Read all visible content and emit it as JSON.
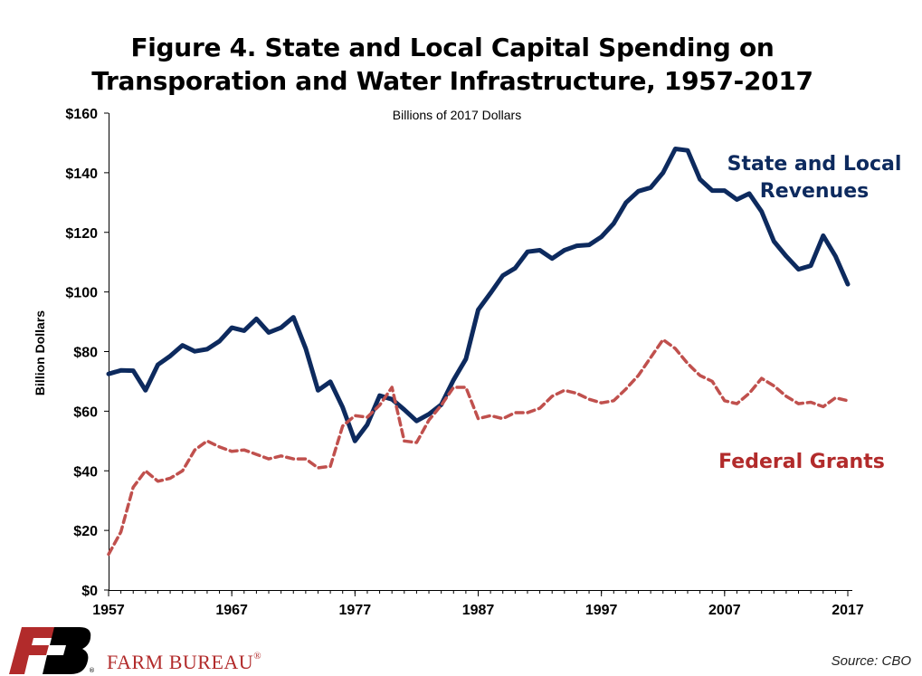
{
  "chart_data": {
    "type": "line",
    "title_lines": [
      "Figure 4. State and Local Capital Spending on",
      "Transporation and Water Infrastructure, 1957-2017"
    ],
    "subtitle": "Billions of 2017 Dollars",
    "ylabel": "Billion Dollars",
    "xlabel": "",
    "xlim": [
      1957,
      2017
    ],
    "ylim": [
      0,
      160
    ],
    "x_ticks": [
      1957,
      1967,
      1977,
      1987,
      1997,
      2007,
      2017
    ],
    "y_ticks": [
      {
        "v": 0,
        "label": "$0"
      },
      {
        "v": 20,
        "label": "$20"
      },
      {
        "v": 40,
        "label": "$40"
      },
      {
        "v": 60,
        "label": "$60"
      },
      {
        "v": 80,
        "label": "$80"
      },
      {
        "v": 100,
        "label": "$100"
      },
      {
        "v": 120,
        "label": "$120"
      },
      {
        "v": 140,
        "label": "$140"
      },
      {
        "v": 160,
        "label": "$160"
      }
    ],
    "grid": false,
    "legend": "inline labels",
    "series": [
      {
        "name": "State and Local Revenues",
        "label_lines": [
          "State and Local",
          "Revenues"
        ],
        "color": "#0d2a5e",
        "style": "solid",
        "x": [
          1957,
          1958,
          1959,
          1960,
          1961,
          1962,
          1963,
          1964,
          1965,
          1966,
          1967,
          1968,
          1969,
          1970,
          1971,
          1972,
          1973,
          1974,
          1975,
          1976,
          1977,
          1978,
          1979,
          1980,
          1981,
          1982,
          1983,
          1984,
          1985,
          1986,
          1987,
          1988,
          1989,
          1990,
          1991,
          1992,
          1993,
          1994,
          1995,
          1996,
          1997,
          1998,
          1999,
          2000,
          2001,
          2002,
          2003,
          2004,
          2005,
          2006,
          2007,
          2008,
          2009,
          2010,
          2011,
          2012,
          2013,
          2014,
          2015,
          2016,
          2017
        ],
        "values": [
          72.5,
          73.7,
          73.6,
          67,
          75.6,
          78.5,
          82.1,
          80.1,
          80.8,
          83.5,
          88,
          87,
          91,
          86.4,
          88,
          91.5,
          81,
          67,
          69.9,
          61.3,
          50,
          55.5,
          65.2,
          64,
          60.5,
          56.7,
          59,
          62.2,
          70.5,
          77.5,
          94,
          99.6,
          105.5,
          108,
          113.5,
          114,
          111.2,
          114,
          115.5,
          115.8,
          118.5,
          123,
          130,
          133.8,
          135,
          140,
          148,
          147.5,
          137.8,
          134,
          134,
          131,
          133,
          127,
          117,
          112,
          107.6,
          108.8,
          118.9,
          112,
          102.6
        ]
      },
      {
        "name": "Federal Grants",
        "label_lines": [
          "Federal Grants"
        ],
        "color": "#c0504d",
        "style": "dashed",
        "x": [
          1957,
          1958,
          1959,
          1960,
          1961,
          1962,
          1963,
          1964,
          1965,
          1966,
          1967,
          1968,
          1969,
          1970,
          1971,
          1972,
          1973,
          1974,
          1975,
          1976,
          1977,
          1978,
          1979,
          1980,
          1981,
          1982,
          1983,
          1984,
          1985,
          1986,
          1987,
          1988,
          1989,
          1990,
          1991,
          1992,
          1993,
          1994,
          1995,
          1996,
          1997,
          1998,
          1999,
          2000,
          2001,
          2002,
          2003,
          2004,
          2005,
          2006,
          2007,
          2008,
          2009,
          2010,
          2011,
          2012,
          2013,
          2014,
          2015,
          2016,
          2017
        ],
        "values": [
          12,
          19.5,
          34.5,
          40,
          36.5,
          37.5,
          40,
          47,
          50,
          48,
          46.5,
          47,
          45.5,
          44,
          45,
          44,
          44,
          41,
          41.5,
          55,
          58.5,
          58,
          62,
          68,
          50,
          49.5,
          57,
          62,
          68,
          68,
          57.5,
          58.5,
          57.5,
          59.5,
          59.5,
          61,
          65,
          67,
          66,
          64,
          62.8,
          63.5,
          67.5,
          72,
          78,
          84,
          81,
          76,
          72,
          70,
          63.5,
          62.5,
          66,
          71,
          68.5,
          65,
          62.5,
          63,
          61.5,
          64.5,
          63.5
        ]
      }
    ]
  },
  "footer": {
    "brand": "FARM BUREAU",
    "brand_mark": "®",
    "source": "Source: CBO"
  },
  "colors": {
    "navy": "#0d2a5e",
    "red": "#c0504d",
    "brand_red": "#b22b2b"
  }
}
